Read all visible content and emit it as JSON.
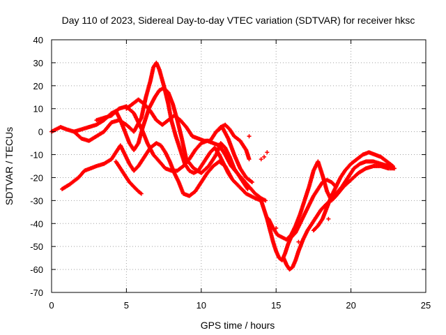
{
  "chart_data": {
    "type": "scatter",
    "title": "Day 110 of 2023, Sidereal Day-to-day VTEC variation (SDTVAR) for receiver hksc",
    "xlabel": "GPS time / hours",
    "ylabel": "SDTVAR / TECUs",
    "xlim": [
      0,
      25
    ],
    "ylim": [
      -70,
      40
    ],
    "xticks": [
      "0",
      "5",
      "10",
      "15",
      "20",
      "25"
    ],
    "yticks": [
      "-70",
      "-60",
      "-50",
      "-40",
      "-30",
      "-20",
      "-10",
      "0",
      "10",
      "20",
      "30",
      "40"
    ],
    "grid": true,
    "marker": "+",
    "color": "#ff0000",
    "series": [
      {
        "x": [
          0.0,
          0.3,
          0.6,
          1.0,
          1.5,
          2.0,
          2.5,
          3.0,
          3.5,
          4.0,
          4.5,
          5.0,
          5.5,
          6.0,
          6.3,
          6.6,
          6.8,
          7.0,
          7.2,
          7.5,
          7.8,
          8.0,
          8.3,
          8.6,
          8.9,
          9.2,
          9.5,
          9.8,
          10.0,
          10.3,
          10.6,
          10.9,
          11.2,
          11.5,
          11.8,
          12.1,
          12.4,
          12.7,
          13.0,
          13.3,
          13.6,
          14.0
        ],
        "y": [
          0,
          1,
          2,
          1,
          0,
          -3,
          -4,
          -2,
          0,
          4,
          5,
          3,
          0,
          6,
          15,
          22,
          28,
          30,
          27,
          20,
          12,
          5,
          -2,
          -8,
          -14,
          -17,
          -18,
          -17,
          -15,
          -12,
          -9,
          -7,
          -10,
          -14,
          -18,
          -21,
          -23,
          -25,
          -27,
          -28,
          -29,
          -30
        ]
      },
      {
        "x": [
          0.7,
          1.2,
          1.8,
          2.2,
          2.6,
          3.0,
          3.5,
          4.0,
          4.3,
          4.6,
          4.9,
          5.2,
          5.5,
          5.8,
          6.2,
          6.6,
          7.0,
          7.3,
          7.6,
          7.9,
          8.2,
          8.5,
          8.8,
          9.2,
          9.6,
          10.0,
          10.4,
          10.8,
          11.2,
          11.6,
          12.0
        ],
        "y": [
          -25,
          -23,
          -20,
          -17,
          -16,
          -15,
          -14,
          -12,
          -9,
          -6,
          -10,
          -14,
          -17,
          -15,
          -11,
          -7,
          -5,
          -6,
          -9,
          -13,
          -18,
          -22,
          -27,
          -28,
          -26,
          -22,
          -18,
          -15,
          -13,
          -15,
          -20
        ]
      },
      {
        "x": [
          1.5,
          2.0,
          2.5,
          3.0,
          3.5,
          4.0,
          4.3,
          4.6,
          4.9,
          5.2,
          5.5,
          5.8,
          6.1,
          6.5,
          6.9,
          7.2,
          7.5,
          7.8,
          8.1,
          8.4,
          8.7,
          9.0,
          9.5,
          10.0,
          10.5,
          11.0,
          11.3,
          11.6,
          11.9,
          12.2,
          12.5,
          12.8,
          13.1
        ],
        "y": [
          0,
          1,
          2,
          3,
          5,
          8,
          9,
          5,
          0,
          -5,
          -8,
          -5,
          2,
          10,
          15,
          18,
          19,
          17,
          12,
          5,
          -3,
          -12,
          -16,
          -18,
          -15,
          -10,
          -5,
          -7,
          -11,
          -16,
          -19,
          -22,
          -25
        ]
      },
      {
        "x": [
          3.0,
          3.5,
          4.0,
          4.5,
          5.0,
          5.5,
          5.8,
          6.1,
          6.4,
          6.8,
          7.2,
          7.6,
          8.0,
          8.4,
          8.8,
          9.2,
          9.6,
          10.0,
          10.4,
          10.8,
          11.2,
          11.6,
          12.0,
          12.4,
          12.8,
          13.2,
          13.6,
          14.0,
          14.3
        ],
        "y": [
          5,
          6,
          7,
          10,
          11,
          8,
          4,
          0,
          -5,
          -10,
          -13,
          -16,
          -17,
          -17,
          -15,
          -12,
          -8,
          -5,
          -4,
          -5,
          -6,
          -10,
          -15,
          -18,
          -21,
          -24,
          -27,
          -29,
          -30
        ]
      },
      {
        "x": [
          4.3,
          4.6,
          4.9,
          5.2,
          5.5,
          5.8,
          6.0
        ],
        "y": [
          -13,
          -16,
          -19,
          -22,
          -24,
          -26,
          -27
        ]
      },
      {
        "x": [
          5.0,
          5.4,
          5.8,
          6.2,
          6.6,
          7.0,
          7.4,
          7.8,
          8.2,
          8.6,
          9.0,
          9.4,
          9.8,
          10.2,
          10.6,
          11.0,
          11.4,
          11.8,
          12.2,
          12.6,
          13.0,
          13.4
        ],
        "y": [
          10,
          12,
          14,
          12,
          9,
          5,
          3,
          5,
          7,
          5,
          2,
          -2,
          -3,
          -4,
          -4,
          0,
          2,
          -3,
          -10,
          -16,
          -20,
          -22
        ]
      },
      {
        "x": [
          11.0,
          11.3,
          11.6,
          11.9,
          12.2,
          12.6,
          13.0,
          13.2
        ],
        "y": [
          0,
          2,
          3,
          1,
          -2,
          -4,
          -8,
          -12
        ]
      },
      {
        "x": [
          14.0,
          14.2,
          14.4,
          14.6,
          14.8,
          15.0,
          15.2,
          15.4,
          15.6,
          15.8,
          16.0,
          16.3,
          16.6,
          16.9,
          17.2,
          17.5,
          17.8,
          18.1,
          18.4,
          18.7,
          19.0
        ],
        "y": [
          -30,
          -34,
          -38,
          -43,
          -48,
          -52,
          -55,
          -56,
          -53,
          -49,
          -46,
          -44,
          -40,
          -36,
          -32,
          -28,
          -25,
          -22,
          -21,
          -22,
          -24
        ]
      },
      {
        "x": [
          14.5,
          14.8,
          15.1,
          15.4,
          15.7,
          16.0,
          16.3,
          16.6,
          16.9,
          17.2,
          17.5,
          17.8,
          18.1,
          18.4,
          18.7,
          19.0,
          19.5,
          20.0,
          20.5,
          21.0,
          21.5,
          22.0,
          22.5,
          22.9
        ],
        "y": [
          -38,
          -42,
          -45,
          -46,
          -47,
          -45,
          -41,
          -36,
          -30,
          -24,
          -17,
          -13,
          -19,
          -26,
          -30,
          -28,
          -24,
          -21,
          -18,
          -16,
          -15,
          -15,
          -16,
          -16
        ]
      },
      {
        "x": [
          15.5,
          15.7,
          15.9,
          16.1,
          16.3,
          16.5,
          16.8,
          17.1,
          17.4,
          17.7,
          18.0,
          18.3,
          18.6,
          19.0,
          19.4,
          19.8,
          20.2,
          20.6,
          21.0,
          21.5,
          22.0,
          22.5,
          22.9
        ],
        "y": [
          -55,
          -58,
          -60,
          -59,
          -56,
          -52,
          -47,
          -43,
          -40,
          -37,
          -34,
          -32,
          -30,
          -27,
          -24,
          -20,
          -16,
          -14,
          -13,
          -13,
          -14,
          -15,
          -16
        ]
      },
      {
        "x": [
          17.5,
          17.8,
          18.1,
          18.4,
          18.7,
          19.0,
          19.3,
          19.6,
          20.0,
          20.4,
          20.8,
          21.2,
          21.6,
          22.0,
          22.4,
          22.8
        ],
        "y": [
          -43,
          -41,
          -38,
          -33,
          -28,
          -24,
          -20,
          -17,
          -14,
          -12,
          -10,
          -9,
          -10,
          -11,
          -13,
          -15
        ]
      },
      {
        "x": [
          14.0,
          14.2,
          14.4,
          13.2,
          18.5,
          16.5,
          15.0
        ],
        "y": [
          -12,
          -11,
          -9,
          -2,
          -38,
          -48,
          -42
        ]
      }
    ]
  }
}
